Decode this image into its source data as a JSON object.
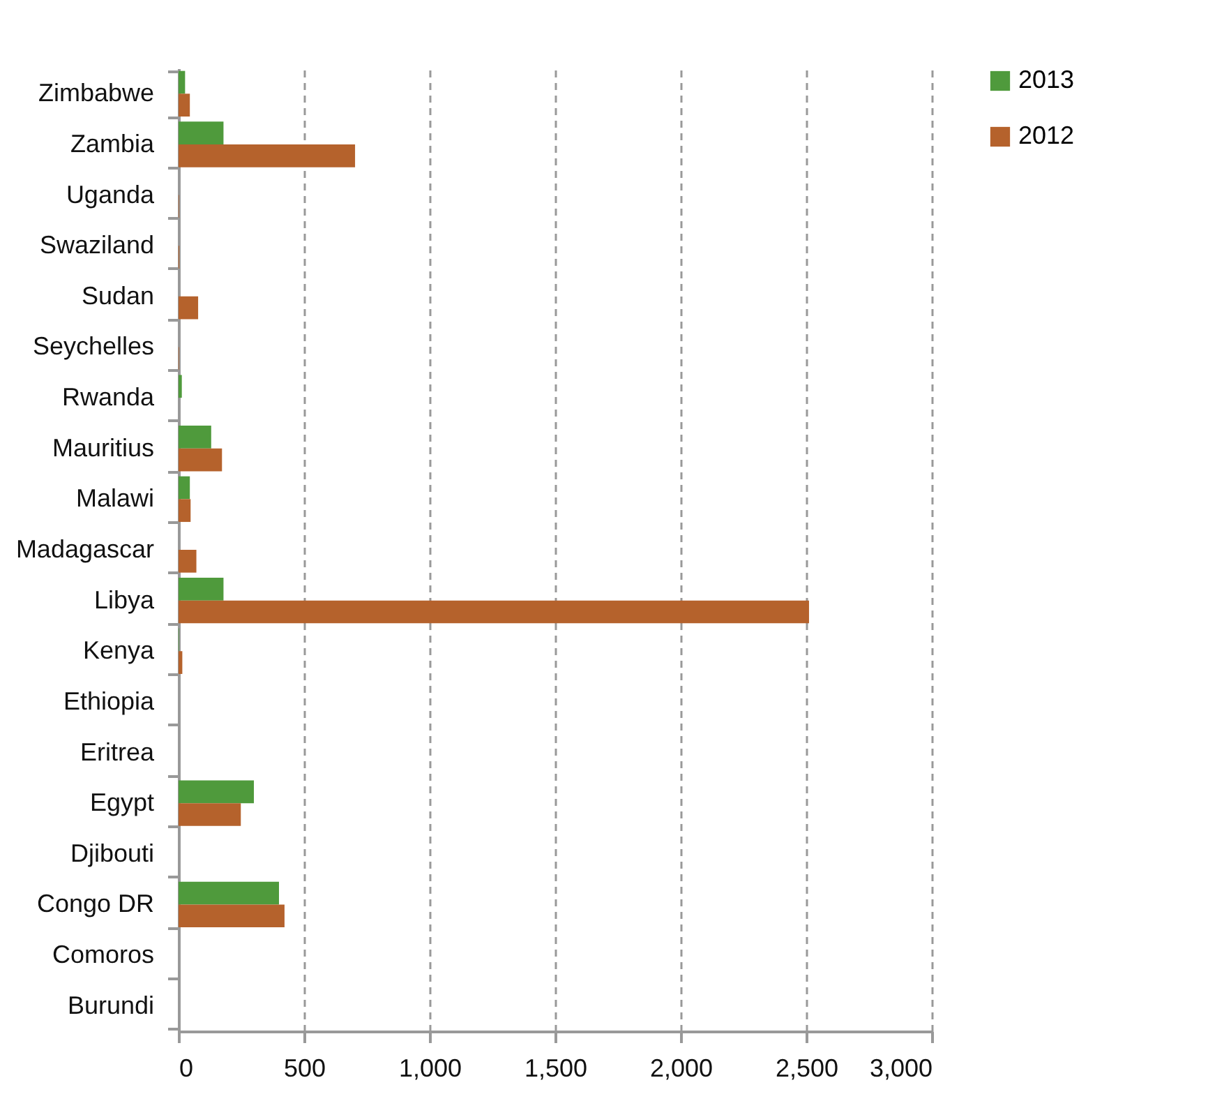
{
  "chart_data": {
    "type": "bar",
    "orientation": "horizontal",
    "categories": [
      "Zimbabwe",
      "Zambia",
      "Uganda",
      "Swaziland",
      "Sudan",
      "Seychelles",
      "Rwanda",
      "Mauritius",
      "Malawi",
      "Madagascar",
      "Libya",
      "Kenya",
      "Ethiopia",
      "Eritrea",
      "Egypt",
      "Djibouti",
      "Congo DR",
      "Comoros",
      "Burundi"
    ],
    "series": [
      {
        "name": "2013",
        "color": "#4f9a3c",
        "values": [
          26,
          179,
          0,
          0,
          0,
          0,
          13,
          130,
          45,
          0,
          179,
          2,
          0,
          0,
          300,
          0,
          400,
          0,
          0
        ]
      },
      {
        "name": "2012",
        "color": "#b5622c",
        "values": [
          45,
          703,
          2,
          3,
          78,
          2,
          0,
          173,
          48,
          71,
          2511,
          15,
          0,
          0,
          248,
          0,
          422,
          0,
          0
        ]
      }
    ],
    "xlim": [
      0,
      3000
    ],
    "xticks": [
      {
        "value": 0,
        "label": "0"
      },
      {
        "value": 500,
        "label": "500"
      },
      {
        "value": 1000,
        "label": "1,000"
      },
      {
        "value": 1500,
        "label": "1,500"
      },
      {
        "value": 2000,
        "label": "2,000"
      },
      {
        "value": 2500,
        "label": "2,500"
      },
      {
        "value": 3000,
        "label": "3,000"
      }
    ],
    "grid": "x",
    "legend": "right"
  }
}
